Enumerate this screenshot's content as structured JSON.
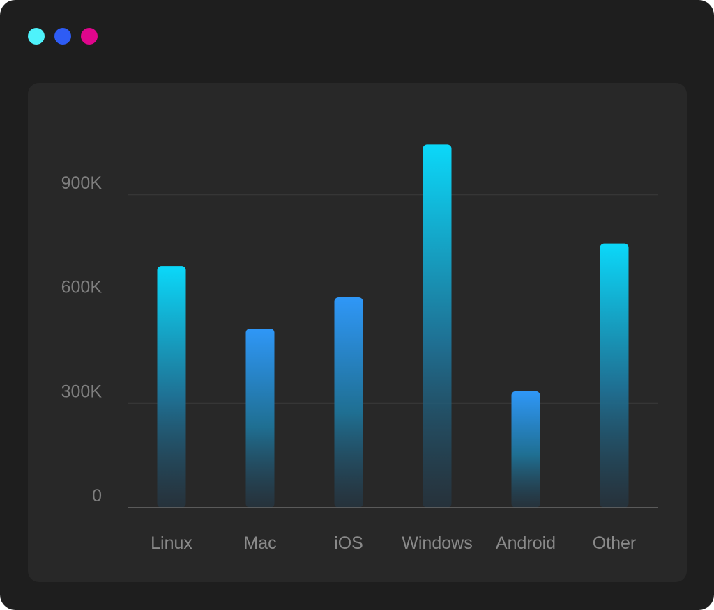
{
  "window": {
    "dots": [
      {
        "name": "cyan-dot",
        "color": "#4ef2fb"
      },
      {
        "name": "blue-dot",
        "color": "#2e5cf5"
      },
      {
        "name": "magenta-dot",
        "color": "#e0068c"
      }
    ]
  },
  "chart_data": {
    "type": "bar",
    "title": "",
    "xlabel": "",
    "ylabel": "",
    "categories": [
      "Linux",
      "Mac",
      "iOS",
      "Windows",
      "Android",
      "Other"
    ],
    "values": [
      695000,
      515000,
      605000,
      1045000,
      335000,
      760000
    ],
    "ylim": [
      0,
      1140000
    ],
    "yticks": [
      {
        "value": 0,
        "label": "0"
      },
      {
        "value": 300000,
        "label": "300K"
      },
      {
        "value": 600000,
        "label": "600K"
      },
      {
        "value": 900000,
        "label": "900K"
      }
    ],
    "grid": true,
    "legend": "none",
    "colors": {
      "cyan_top": "#0bd8f9",
      "blue_top": "#2f97f7",
      "bottom": "#253a4a",
      "gridline": "#3a3a3a",
      "baseline": "#6a6a6a"
    },
    "bar_top_color": [
      "cyan",
      "blue",
      "blue",
      "cyan",
      "blue",
      "cyan"
    ]
  }
}
